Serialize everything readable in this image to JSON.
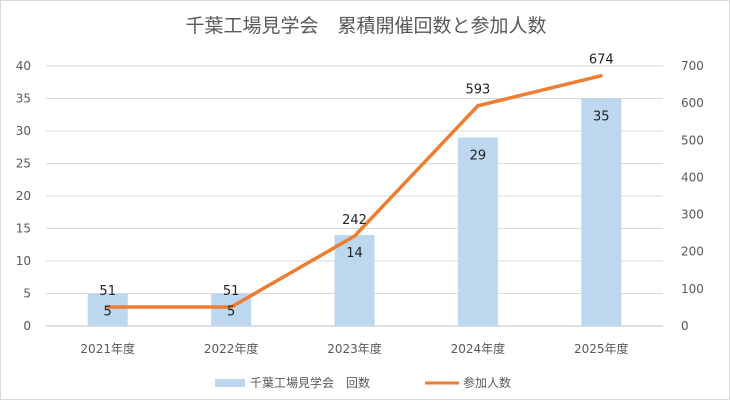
{
  "chart_data": {
    "type": "bar+line",
    "title": "千葉工場見学会　累積開催回数と参加人数",
    "categories": [
      "2021年度",
      "2022年度",
      "2023年度",
      "2024年度",
      "2025年度"
    ],
    "series": [
      {
        "name": "千葉工場見学会　回数",
        "type": "bar",
        "axis": "left",
        "values": [
          5,
          5,
          14,
          29,
          35
        ],
        "color": "#bdd7ee"
      },
      {
        "name": "参加人数",
        "type": "line",
        "axis": "right",
        "values": [
          51,
          51,
          242,
          593,
          674
        ],
        "color": "#ed7d31"
      }
    ],
    "y_left": {
      "min": 0,
      "max": 40,
      "ticks": [
        0,
        5,
        10,
        15,
        20,
        25,
        30,
        35,
        40
      ]
    },
    "y_right": {
      "min": 0,
      "max": 700,
      "ticks": [
        0,
        100,
        200,
        300,
        400,
        500,
        600,
        700
      ]
    },
    "grid": true,
    "legend": "bottom"
  }
}
